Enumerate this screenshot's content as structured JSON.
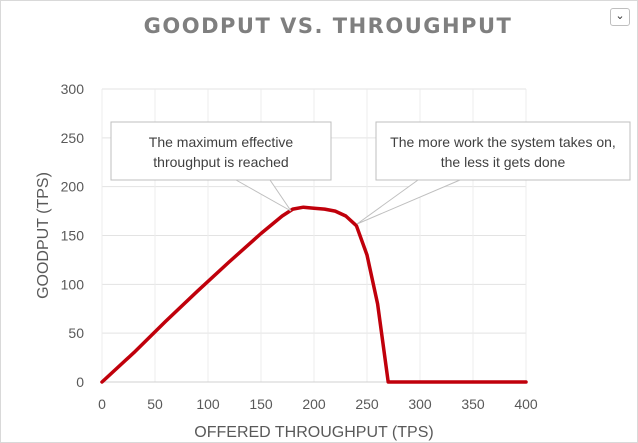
{
  "chart_data": {
    "type": "line",
    "title": "GOODPUT VS. THROUGHPUT",
    "xlabel": "OFFERED THROUGHPUT (TPS)",
    "ylabel": "GOODPUT (TPS)",
    "xlim": [
      0,
      400
    ],
    "ylim": [
      0,
      300
    ],
    "x_ticks": [
      "0",
      "50",
      "100",
      "150",
      "200",
      "250",
      "300",
      "350",
      "400"
    ],
    "y_ticks": [
      "0",
      "50",
      "100",
      "150",
      "200",
      "250",
      "300"
    ],
    "grid": true,
    "legend": "none",
    "series": [
      {
        "color": "#c0000b",
        "x": [
          0,
          30,
          60,
          90,
          120,
          150,
          170,
          180,
          190,
          200,
          210,
          220,
          230,
          240,
          250,
          260,
          265,
          270,
          300,
          350,
          400
        ],
        "y": [
          0,
          30,
          62,
          93,
          123,
          152,
          170,
          177,
          179,
          178,
          177,
          175,
          170,
          160,
          130,
          80,
          40,
          0,
          0,
          0,
          0
        ]
      }
    ],
    "annotations": [
      {
        "lines": [
          "The maximum effective",
          "throughput is reached"
        ],
        "x": 180,
        "y": 177
      },
      {
        "lines": [
          "The more work the system takes on,",
          "the less it gets done"
        ],
        "x": 240,
        "y": 160
      }
    ]
  },
  "ui": {
    "menu_icon": "chevron-down-icon",
    "menu_glyph": "⌄"
  }
}
